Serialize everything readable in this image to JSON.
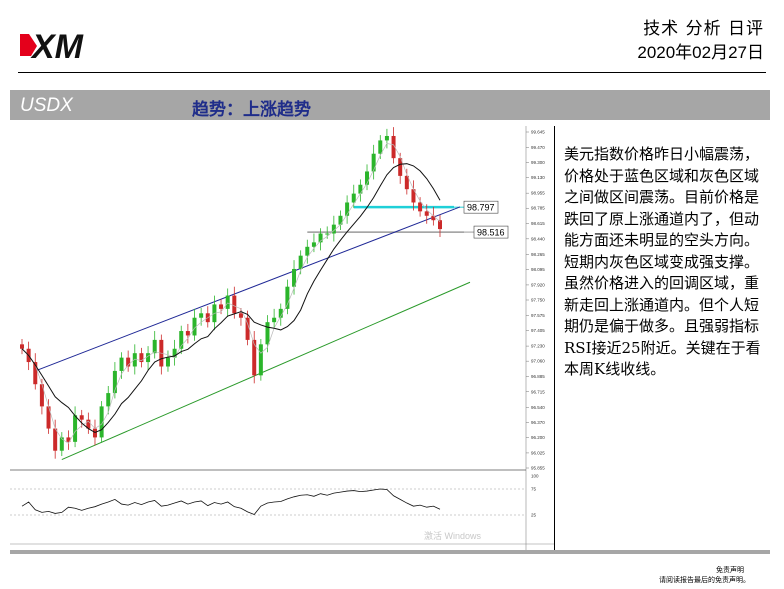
{
  "header": {
    "logo_text": "XM",
    "title": "技术 分析 日评",
    "date": "2020年02月27日"
  },
  "title_bar": {
    "symbol": "USDX",
    "trend": "趋势：上涨趋势"
  },
  "chart_data": {
    "type": "candlestick",
    "symbol": "USDX",
    "price_axis_ticks": [
      "99.645",
      "99.470",
      "99.300",
      "99.130",
      "98.955",
      "98.785",
      "98.615",
      "98.440",
      "98.265",
      "98.095",
      "97.920",
      "97.750",
      "97.575",
      "97.405",
      "97.230",
      "97.060",
      "96.885",
      "96.715",
      "96.540",
      "96.370",
      "96.200",
      "96.025",
      "95.855"
    ],
    "y_range": [
      95.855,
      99.645
    ],
    "annotations": [
      {
        "label": "98.797",
        "value": 98.797,
        "color": "#1fd0d8"
      },
      {
        "label": "98.516",
        "value": 98.516,
        "color": "#9a9a9a"
      }
    ],
    "price_series_approx": [
      97.2,
      97.05,
      96.8,
      96.55,
      96.3,
      96.05,
      96.2,
      96.15,
      96.45,
      96.4,
      96.3,
      96.2,
      96.55,
      96.7,
      96.95,
      97.1,
      97.0,
      97.15,
      97.05,
      97.15,
      97.3,
      97.0,
      97.1,
      97.2,
      97.4,
      97.35,
      97.55,
      97.6,
      97.5,
      97.7,
      97.65,
      97.8,
      97.6,
      97.55,
      97.3,
      96.9,
      97.25,
      97.5,
      97.55,
      97.65,
      97.9,
      98.1,
      98.25,
      98.35,
      98.4,
      98.5,
      98.5,
      98.6,
      98.7,
      98.85,
      98.95,
      99.05,
      99.2,
      99.4,
      99.55,
      99.6,
      99.35,
      99.15,
      99.0,
      98.85,
      98.75,
      98.7,
      98.65,
      98.55
    ],
    "rsi": {
      "ticks": [
        "100",
        "75",
        "25"
      ],
      "levels": [
        75,
        25
      ],
      "values_approx": [
        42,
        50,
        35,
        30,
        32,
        28,
        30,
        40,
        38,
        34,
        38,
        41,
        46,
        50,
        55,
        46,
        44,
        49,
        45,
        50,
        53,
        42,
        44,
        48,
        52,
        46,
        50,
        52,
        43,
        49,
        46,
        50,
        41,
        38,
        31,
        26,
        42,
        48,
        50,
        51,
        56,
        60,
        63,
        64,
        61,
        66,
        63,
        67,
        69,
        71,
        72,
        70,
        71,
        73,
        75,
        74,
        62,
        55,
        48,
        42,
        44,
        40,
        42,
        36
      ]
    },
    "watermark": "激活 Windows"
  },
  "commentary": "美元指数价格昨日小幅震荡，价格处于蓝色区域和灰色区域之间做区间震荡。目前价格是跌回了原上涨通道内了，但动能方面还未明显的空头方向。短期内灰色区域变成强支撑。虽然价格进入的回调区域，重新走回上涨通道内。但个人短期仍是偏于做多。且强弱指标RSI接近25附近。关键在于看本周K线收线。",
  "disclaimer": {
    "title": "免责声明",
    "text": "请阅读报告最后的免责声明。"
  },
  "colors": {
    "bar_gray": "#a6a6a6",
    "trend_text": "#1f2d8a",
    "up_candle": "#2bb52b",
    "down_candle": "#cc2a2a",
    "channel_blue": "#1f2896",
    "channel_green": "#2a9a2a",
    "cyan_zone": "#1fd0d8",
    "gray_zone": "#9a9a9a"
  }
}
